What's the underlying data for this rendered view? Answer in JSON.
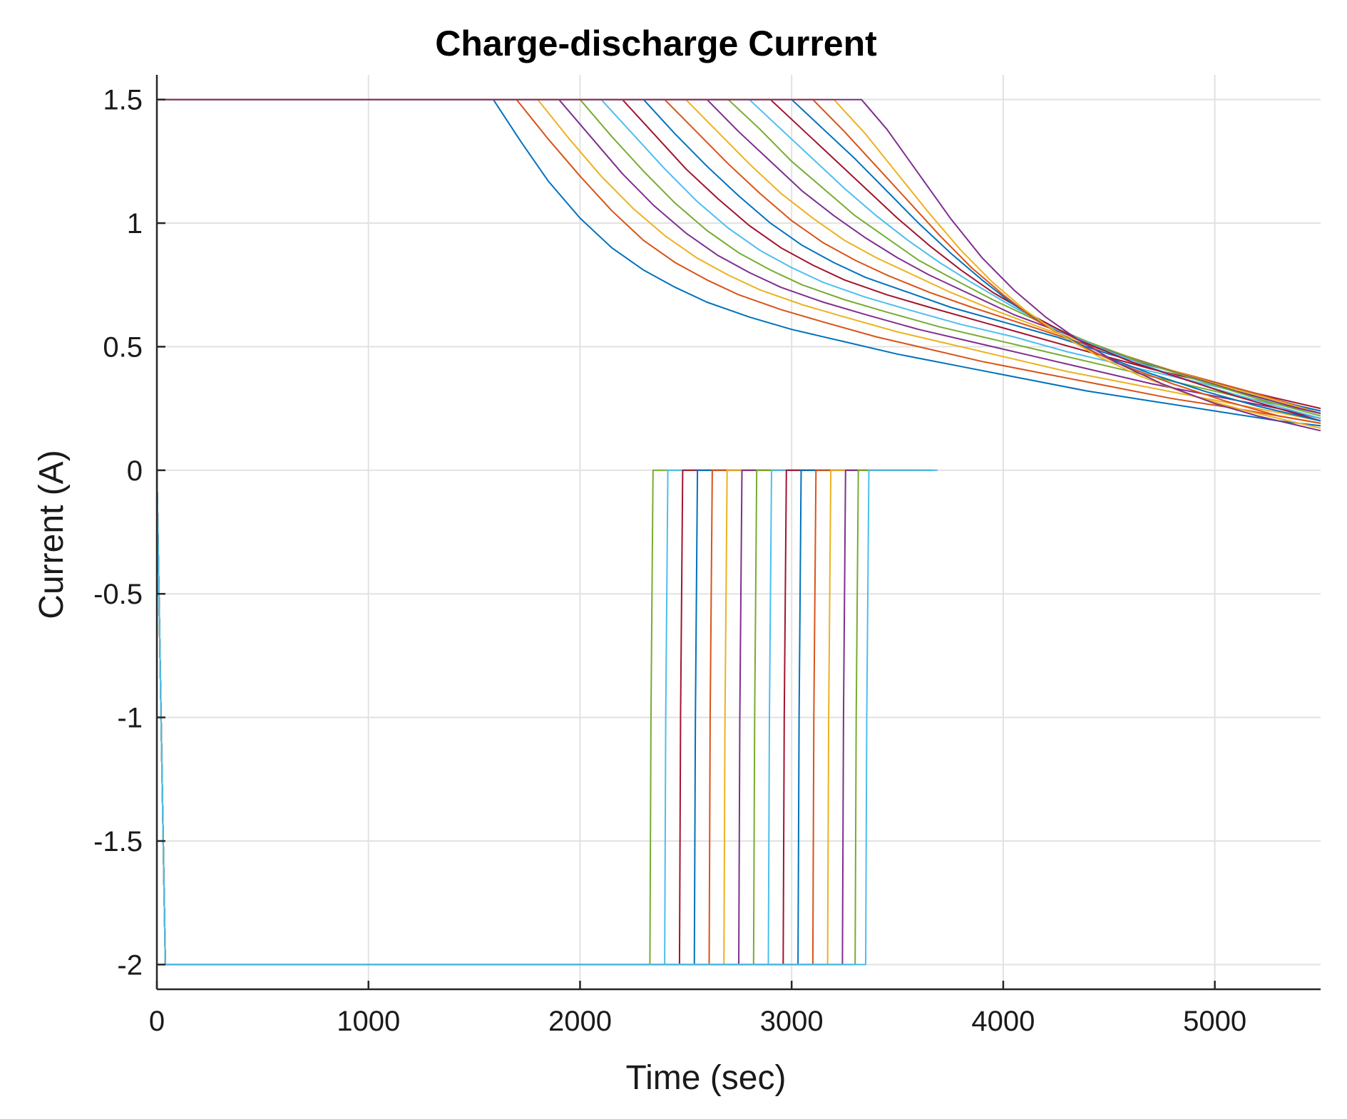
{
  "chart_data": {
    "type": "line",
    "title": "Charge-discharge Current",
    "xlabel": "Time (sec)",
    "ylabel": "Current (A)",
    "xlim": [
      0,
      5500
    ],
    "ylim": [
      -2.1,
      1.6
    ],
    "xticks": [
      0,
      1000,
      2000,
      3000,
      4000,
      5000
    ],
    "yticks": [
      -2,
      -1.5,
      -1,
      -0.5,
      0,
      0.5,
      1,
      1.5
    ],
    "grid": true,
    "legend": "none",
    "colors": [
      "#0072bd",
      "#d95319",
      "#edb120",
      "#7e2f8e",
      "#77ac30",
      "#4dbeee",
      "#a2142f"
    ],
    "series": [
      {
        "x": [
          0,
          30,
          1590,
          1720,
          1850,
          2000,
          2150,
          2300,
          2450,
          2600,
          2800,
          3000,
          3250,
          3500,
          3800,
          4100,
          4400,
          4700,
          5000,
          5300,
          5500
        ],
        "y": [
          1.5,
          1.5,
          1.5,
          1.33,
          1.17,
          1.02,
          0.9,
          0.81,
          0.74,
          0.68,
          0.62,
          0.57,
          0.52,
          0.47,
          0.42,
          0.37,
          0.32,
          0.28,
          0.24,
          0.2,
          0.18
        ]
      },
      {
        "x": [
          0,
          30,
          1700,
          1850,
          2000,
          2150,
          2300,
          2450,
          2600,
          2750,
          2950,
          3150,
          3400,
          3650,
          3900,
          4200,
          4500,
          4800,
          5100,
          5300,
          5500
        ],
        "y": [
          1.5,
          1.5,
          1.5,
          1.34,
          1.19,
          1.05,
          0.93,
          0.84,
          0.77,
          0.71,
          0.65,
          0.6,
          0.54,
          0.49,
          0.44,
          0.39,
          0.34,
          0.29,
          0.25,
          0.22,
          0.19
        ]
      },
      {
        "x": [
          0,
          30,
          1800,
          1950,
          2100,
          2250,
          2400,
          2550,
          2700,
          2850,
          3050,
          3250,
          3500,
          3750,
          4000,
          4300,
          4600,
          4900,
          5200,
          5500
        ],
        "y": [
          1.5,
          1.5,
          1.5,
          1.34,
          1.19,
          1.06,
          0.95,
          0.86,
          0.79,
          0.73,
          0.67,
          0.62,
          0.56,
          0.51,
          0.46,
          0.4,
          0.35,
          0.3,
          0.25,
          0.2
        ]
      },
      {
        "x": [
          0,
          30,
          1900,
          2050,
          2200,
          2350,
          2500,
          2650,
          2800,
          2950,
          3150,
          3350,
          3600,
          3850,
          4100,
          4400,
          4700,
          5000,
          5300,
          5500
        ],
        "y": [
          1.5,
          1.5,
          1.5,
          1.35,
          1.2,
          1.07,
          0.96,
          0.87,
          0.8,
          0.74,
          0.68,
          0.63,
          0.57,
          0.52,
          0.47,
          0.41,
          0.35,
          0.3,
          0.25,
          0.21
        ]
      },
      {
        "x": [
          0,
          30,
          2000,
          2150,
          2300,
          2450,
          2600,
          2750,
          2900,
          3050,
          3250,
          3450,
          3700,
          3950,
          4200,
          4500,
          4800,
          5100,
          5400,
          5500
        ],
        "y": [
          1.5,
          1.5,
          1.5,
          1.35,
          1.21,
          1.08,
          0.97,
          0.88,
          0.81,
          0.75,
          0.69,
          0.64,
          0.58,
          0.53,
          0.48,
          0.42,
          0.36,
          0.3,
          0.25,
          0.23
        ]
      },
      {
        "x": [
          0,
          30,
          2100,
          2250,
          2400,
          2550,
          2700,
          2850,
          3000,
          3150,
          3350,
          3550,
          3800,
          4050,
          4300,
          4600,
          4900,
          5200,
          5500
        ],
        "y": [
          1.5,
          1.5,
          1.5,
          1.36,
          1.22,
          1.09,
          0.98,
          0.89,
          0.82,
          0.76,
          0.7,
          0.65,
          0.59,
          0.54,
          0.48,
          0.42,
          0.36,
          0.3,
          0.24
        ]
      },
      {
        "x": [
          0,
          30,
          2200,
          2350,
          2500,
          2650,
          2800,
          2950,
          3100,
          3250,
          3450,
          3650,
          3900,
          4150,
          4400,
          4700,
          5000,
          5300,
          5500
        ],
        "y": [
          1.5,
          1.5,
          1.5,
          1.36,
          1.22,
          1.1,
          0.99,
          0.9,
          0.83,
          0.77,
          0.71,
          0.66,
          0.6,
          0.54,
          0.48,
          0.41,
          0.35,
          0.29,
          0.25
        ]
      },
      {
        "x": [
          0,
          30,
          2300,
          2450,
          2600,
          2750,
          2900,
          3050,
          3200,
          3350,
          3550,
          3750,
          4000,
          4250,
          4500,
          4800,
          5100,
          5400,
          5500
        ],
        "y": [
          1.5,
          1.5,
          1.5,
          1.36,
          1.23,
          1.11,
          1.0,
          0.91,
          0.84,
          0.78,
          0.72,
          0.66,
          0.6,
          0.54,
          0.47,
          0.4,
          0.33,
          0.26,
          0.24
        ]
      },
      {
        "x": [
          0,
          30,
          2400,
          2550,
          2700,
          2850,
          3000,
          3150,
          3300,
          3450,
          3650,
          3850,
          4100,
          4350,
          4600,
          4900,
          5200,
          5500
        ],
        "y": [
          1.5,
          1.5,
          1.5,
          1.37,
          1.24,
          1.12,
          1.01,
          0.92,
          0.85,
          0.79,
          0.72,
          0.66,
          0.59,
          0.52,
          0.45,
          0.38,
          0.31,
          0.23
        ]
      },
      {
        "x": [
          0,
          30,
          2500,
          2650,
          2800,
          2950,
          3100,
          3250,
          3400,
          3550,
          3750,
          3950,
          4200,
          4450,
          4700,
          5000,
          5300,
          5500
        ],
        "y": [
          1.5,
          1.5,
          1.5,
          1.37,
          1.24,
          1.12,
          1.02,
          0.93,
          0.86,
          0.8,
          0.72,
          0.65,
          0.57,
          0.5,
          0.43,
          0.35,
          0.28,
          0.23
        ]
      },
      {
        "x": [
          0,
          30,
          2600,
          2750,
          2900,
          3050,
          3200,
          3350,
          3500,
          3650,
          3850,
          4050,
          4300,
          4550,
          4800,
          5100,
          5400,
          5500
        ],
        "y": [
          1.5,
          1.5,
          1.5,
          1.37,
          1.25,
          1.13,
          1.03,
          0.94,
          0.86,
          0.79,
          0.71,
          0.63,
          0.55,
          0.47,
          0.4,
          0.32,
          0.25,
          0.23
        ]
      },
      {
        "x": [
          0,
          30,
          2700,
          2850,
          3000,
          3150,
          3300,
          3450,
          3600,
          3750,
          3950,
          4150,
          4400,
          4650,
          4900,
          5200,
          5500
        ],
        "y": [
          1.5,
          1.5,
          1.5,
          1.38,
          1.25,
          1.14,
          1.03,
          0.94,
          0.85,
          0.78,
          0.69,
          0.61,
          0.52,
          0.44,
          0.37,
          0.29,
          0.22
        ]
      },
      {
        "x": [
          0,
          30,
          2800,
          2950,
          3100,
          3250,
          3400,
          3550,
          3700,
          3850,
          4050,
          4250,
          4500,
          4750,
          5000,
          5250,
          5500
        ],
        "y": [
          1.5,
          1.5,
          1.5,
          1.38,
          1.26,
          1.14,
          1.03,
          0.93,
          0.84,
          0.76,
          0.66,
          0.57,
          0.48,
          0.4,
          0.33,
          0.27,
          0.21
        ]
      },
      {
        "x": [
          0,
          30,
          2900,
          3050,
          3200,
          3350,
          3500,
          3650,
          3800,
          3950,
          4150,
          4350,
          4600,
          4850,
          5100,
          5300,
          5500
        ],
        "y": [
          1.5,
          1.5,
          1.5,
          1.38,
          1.26,
          1.14,
          1.02,
          0.91,
          0.81,
          0.72,
          0.62,
          0.53,
          0.44,
          0.37,
          0.3,
          0.25,
          0.2
        ]
      },
      {
        "x": [
          0,
          30,
          3000,
          3150,
          3300,
          3450,
          3600,
          3750,
          3900,
          4050,
          4250,
          4450,
          4700,
          4950,
          5200,
          5400,
          5500
        ],
        "y": [
          1.5,
          1.5,
          1.5,
          1.38,
          1.26,
          1.13,
          1.0,
          0.88,
          0.77,
          0.67,
          0.56,
          0.47,
          0.39,
          0.32,
          0.26,
          0.22,
          0.2
        ]
      },
      {
        "x": [
          0,
          30,
          3100,
          3250,
          3400,
          3550,
          3700,
          3850,
          4000,
          4150,
          4350,
          4550,
          4800,
          5050,
          5300,
          5500
        ],
        "y": [
          1.5,
          1.5,
          1.5,
          1.37,
          1.23,
          1.09,
          0.95,
          0.82,
          0.71,
          0.61,
          0.51,
          0.43,
          0.35,
          0.28,
          0.22,
          0.19
        ]
      },
      {
        "x": [
          0,
          30,
          3200,
          3350,
          3500,
          3650,
          3800,
          3950,
          4100,
          4250,
          4450,
          4650,
          4900,
          5150,
          5350,
          5500
        ],
        "y": [
          1.5,
          1.5,
          1.5,
          1.36,
          1.2,
          1.04,
          0.89,
          0.76,
          0.65,
          0.56,
          0.46,
          0.38,
          0.3,
          0.24,
          0.2,
          0.17
        ]
      },
      {
        "x": [
          0,
          30,
          3330,
          3450,
          3600,
          3750,
          3900,
          4050,
          4200,
          4350,
          4550,
          4750,
          5000,
          5200,
          5400,
          5500
        ],
        "y": [
          1.5,
          1.5,
          1.5,
          1.38,
          1.2,
          1.02,
          0.86,
          0.73,
          0.62,
          0.53,
          0.43,
          0.35,
          0.27,
          0.22,
          0.18,
          0.16
        ]
      },
      {
        "x": [
          0,
          20,
          40,
          2330,
          2335,
          2345,
          3300
        ],
        "y": [
          0,
          -1.0,
          -2.0,
          -2.0,
          -1.0,
          0,
          0
        ]
      },
      {
        "x": [
          0,
          20,
          40,
          2400,
          2405,
          2415,
          3350
        ],
        "y": [
          0,
          -1.0,
          -2.0,
          -2.0,
          -1.0,
          0,
          0
        ]
      },
      {
        "x": [
          0,
          20,
          40,
          2470,
          2475,
          2485,
          3380
        ],
        "y": [
          0,
          -1.0,
          -2.0,
          -2.0,
          -1.0,
          0,
          0
        ]
      },
      {
        "x": [
          0,
          20,
          40,
          2540,
          2545,
          2555,
          3420
        ],
        "y": [
          0,
          -1.0,
          -2.0,
          -2.0,
          -1.0,
          0,
          0
        ]
      },
      {
        "x": [
          0,
          20,
          40,
          2610,
          2615,
          2625,
          3450
        ],
        "y": [
          0,
          -1.0,
          -2.0,
          -2.0,
          -1.0,
          0,
          0
        ]
      },
      {
        "x": [
          0,
          20,
          40,
          2680,
          2685,
          2695,
          3480
        ],
        "y": [
          0,
          -1.0,
          -2.0,
          -2.0,
          -1.0,
          0,
          0
        ]
      },
      {
        "x": [
          0,
          20,
          40,
          2750,
          2755,
          2765,
          3500
        ],
        "y": [
          0,
          -1.0,
          -2.0,
          -2.0,
          -1.0,
          0,
          0
        ]
      },
      {
        "x": [
          0,
          20,
          40,
          2820,
          2825,
          2835,
          3520
        ],
        "y": [
          0,
          -1.0,
          -2.0,
          -2.0,
          -1.0,
          0,
          0
        ]
      },
      {
        "x": [
          0,
          20,
          40,
          2890,
          2895,
          2905,
          3550
        ],
        "y": [
          0,
          -1.0,
          -2.0,
          -2.0,
          -1.0,
          0,
          0
        ]
      },
      {
        "x": [
          0,
          20,
          40,
          2960,
          2965,
          2975,
          3580
        ],
        "y": [
          0,
          -1.0,
          -2.0,
          -2.0,
          -1.0,
          0,
          0
        ]
      },
      {
        "x": [
          0,
          20,
          40,
          3030,
          3035,
          3045,
          3600
        ],
        "y": [
          0,
          -1.0,
          -2.0,
          -2.0,
          -1.0,
          0,
          0
        ]
      },
      {
        "x": [
          0,
          20,
          40,
          3100,
          3105,
          3115,
          3620
        ],
        "y": [
          0,
          -1.0,
          -2.0,
          -2.0,
          -1.0,
          0,
          0
        ]
      },
      {
        "x": [
          0,
          20,
          40,
          3170,
          3175,
          3185,
          3640
        ],
        "y": [
          0,
          -1.0,
          -2.0,
          -2.0,
          -1.0,
          0,
          0
        ]
      },
      {
        "x": [
          0,
          20,
          40,
          3240,
          3245,
          3255,
          3660
        ],
        "y": [
          0,
          -1.0,
          -2.0,
          -2.0,
          -1.0,
          0,
          0
        ]
      },
      {
        "x": [
          0,
          20,
          40,
          3300,
          3305,
          3315,
          3680
        ],
        "y": [
          0,
          -1.0,
          -2.0,
          -2.0,
          -1.0,
          0,
          0
        ]
      },
      {
        "x": [
          0,
          20,
          40,
          3350,
          3355,
          3365,
          3690
        ],
        "y": [
          0,
          -1.0,
          -2.0,
          -2.0,
          -1.0,
          0,
          0
        ]
      }
    ]
  }
}
